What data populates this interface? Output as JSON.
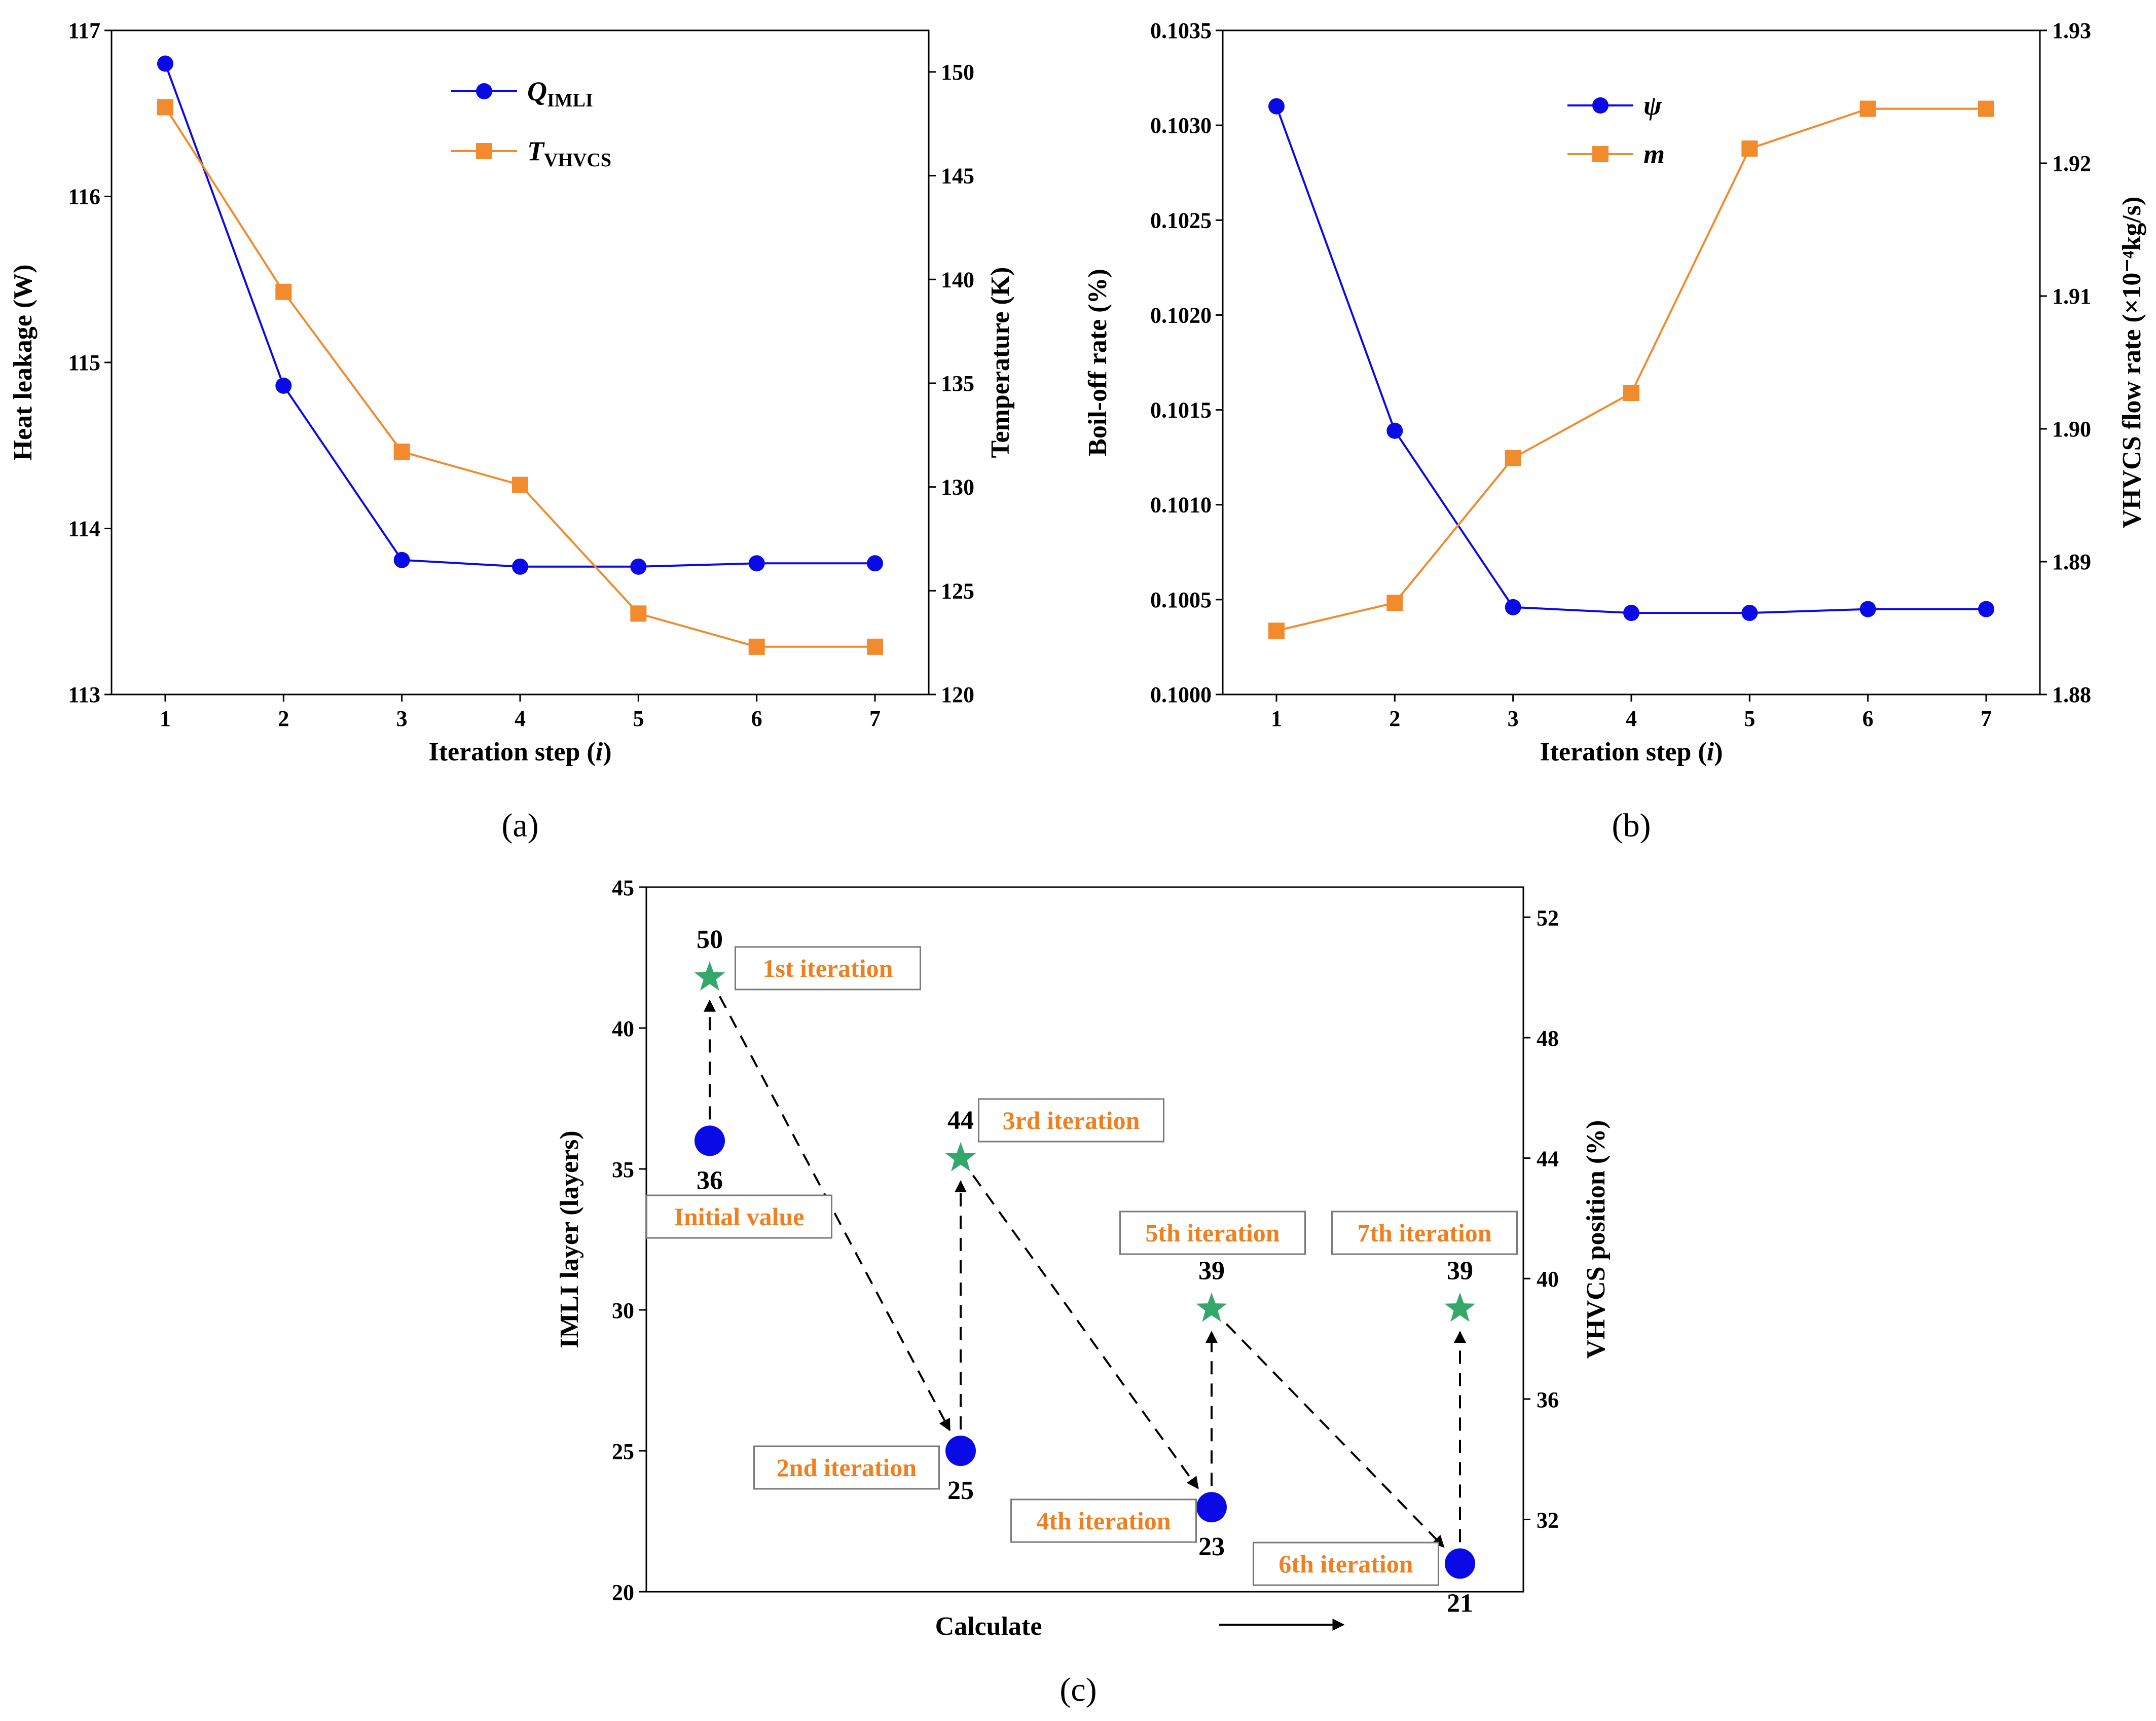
{
  "colors": {
    "blue": "#0a0ae6",
    "orange": "#f28a2e",
    "green": "#34a86a",
    "iter_text": "#f07f1f"
  },
  "chart_data": [
    {
      "panel": "(a)",
      "type": "line",
      "caption": "(a)",
      "x": [
        1,
        2,
        3,
        4,
        5,
        6,
        7
      ],
      "xlabel": "Iteration step (i)",
      "xlabel_main": "Iteration step (",
      "xlabel_var": "i",
      "xlabel_close": ")",
      "xticks": [
        "1",
        "2",
        "3",
        "4",
        "5",
        "6",
        "7"
      ],
      "ylabel": "Heat leakage (W)",
      "ylim": [
        113,
        117
      ],
      "yticks": [
        "113",
        "114",
        "115",
        "116",
        "117"
      ],
      "y2label": "Temperature (K)",
      "y2lim": [
        120,
        152
      ],
      "y2ticks": [
        "120",
        "125",
        "130",
        "135",
        "140",
        "145",
        "150"
      ],
      "legend_position": "top-right",
      "series": [
        {
          "name": "Q_IMLI",
          "sym": "Q",
          "sub": "IMLI",
          "axis": "left",
          "color": "#0a0ae6",
          "marker": "circle",
          "values": [
            116.8,
            114.86,
            113.81,
            113.77,
            113.77,
            113.79,
            113.79
          ]
        },
        {
          "name": "T_VHVCS",
          "sym": "T",
          "sub": "VHVCS",
          "axis": "right",
          "color": "#f28a2e",
          "marker": "square",
          "values": [
            148.3,
            139.4,
            131.7,
            130.1,
            123.9,
            122.3,
            122.3
          ]
        }
      ]
    },
    {
      "panel": "(b)",
      "type": "line",
      "caption": "(b)",
      "x": [
        1,
        2,
        3,
        4,
        5,
        6,
        7
      ],
      "xlabel": "Iteration step (i)",
      "xlabel_main": "Iteration step (",
      "xlabel_var": "i",
      "xlabel_close": ")",
      "xticks": [
        "1",
        "2",
        "3",
        "4",
        "5",
        "6",
        "7"
      ],
      "ylabel": "Boil-off rate (%)",
      "ylim": [
        0.1,
        0.1035
      ],
      "yticks": [
        "0.1000",
        "0.1005",
        "0.1010",
        "0.1015",
        "0.1020",
        "0.1025",
        "0.1030",
        "0.1035"
      ],
      "y2label": "VHVCS flow rate (×10⁻⁴kg/s)",
      "y2lim": [
        1.88,
        1.93
      ],
      "y2ticks": [
        "1.88",
        "1.89",
        "1.90",
        "1.91",
        "1.92",
        "1.93"
      ],
      "legend_position": "top-right",
      "series": [
        {
          "name": "ψ",
          "sym": "ψ",
          "sub": "",
          "axis": "left",
          "color": "#0a0ae6",
          "marker": "circle",
          "values": [
            0.1031,
            0.10139,
            0.10046,
            0.10043,
            0.10043,
            0.10045,
            0.10045
          ]
        },
        {
          "name": "m",
          "sym": "m",
          "sub": "",
          "axis": "right",
          "color": "#f28a2e",
          "marker": "square",
          "values": [
            1.8848,
            1.8869,
            1.8978,
            1.9027,
            1.9211,
            1.9241,
            1.9241
          ]
        }
      ]
    },
    {
      "panel": "(c)",
      "type": "scatter",
      "caption": "(c)",
      "xlabel": "Calculate",
      "ylabel": "IMLI layer (layers)",
      "ylim": [
        20,
        45
      ],
      "yticks": [
        "20",
        "25",
        "30",
        "35",
        "40",
        "45"
      ],
      "y2label": "VHVCS position (%)",
      "y2lim": [
        29.6,
        53.0
      ],
      "y2ticks": [
        "32",
        "36",
        "40",
        "44",
        "48",
        "52"
      ],
      "points": [
        {
          "step": 0,
          "kind": "circle",
          "axis": "left",
          "value": 36,
          "label": "36",
          "iteration": "Initial value"
        },
        {
          "step": 1,
          "kind": "star",
          "axis": "right",
          "value": 50,
          "label": "50",
          "iteration": "1st iteration"
        },
        {
          "step": 2,
          "kind": "circle",
          "axis": "left",
          "value": 25,
          "label": "25",
          "iteration": "2nd iteration"
        },
        {
          "step": 3,
          "kind": "star",
          "axis": "right",
          "value": 44,
          "label": "44",
          "iteration": "3rd iteration"
        },
        {
          "step": 4,
          "kind": "circle",
          "axis": "left",
          "value": 23,
          "label": "23",
          "iteration": "4th iteration"
        },
        {
          "step": 5,
          "kind": "star",
          "axis": "right",
          "value": 39,
          "label": "39",
          "iteration": "5th iteration"
        },
        {
          "step": 6,
          "kind": "circle",
          "axis": "left",
          "value": 21,
          "label": "21",
          "iteration": "6th iteration"
        },
        {
          "step": 7,
          "kind": "star",
          "axis": "right",
          "value": 39,
          "label": "39",
          "iteration": "7th iteration"
        }
      ]
    }
  ]
}
